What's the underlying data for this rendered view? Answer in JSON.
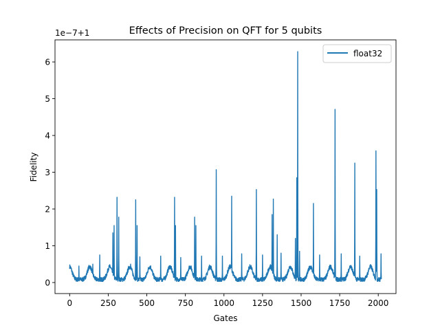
{
  "chart_data": {
    "type": "line",
    "title": "Effects of Precision on QFT for 5 qubits",
    "xlabel": "Gates",
    "ylabel": "Fidelity",
    "offset_text": "1e−7+1",
    "xlim": [
      -95,
      2115
    ],
    "ylim": [
      -0.3,
      6.6
    ],
    "xticks": [
      0,
      250,
      500,
      750,
      1000,
      1250,
      1500,
      1750,
      2000
    ],
    "yticks": [
      0,
      1,
      2,
      3,
      4,
      5,
      6
    ],
    "grid": false,
    "legend": {
      "position": "top-right",
      "entries": [
        "float32"
      ]
    },
    "series": [
      {
        "name": "float32",
        "color": "#1f77b4",
        "x_range": [
          0,
          2020
        ],
        "peaks": [
          {
            "x": 60,
            "y": 0.45
          },
          {
            "x": 150,
            "y": 0.5
          },
          {
            "x": 195,
            "y": 0.75
          },
          {
            "x": 280,
            "y": 1.35
          },
          {
            "x": 288,
            "y": 1.55
          },
          {
            "x": 307,
            "y": 2.32
          },
          {
            "x": 318,
            "y": 1.78
          },
          {
            "x": 395,
            "y": 0.5
          },
          {
            "x": 428,
            "y": 2.25
          },
          {
            "x": 437,
            "y": 1.55
          },
          {
            "x": 455,
            "y": 0.7
          },
          {
            "x": 590,
            "y": 0.72
          },
          {
            "x": 680,
            "y": 2.32
          },
          {
            "x": 686,
            "y": 1.55
          },
          {
            "x": 720,
            "y": 0.68
          },
          {
            "x": 810,
            "y": 1.78
          },
          {
            "x": 818,
            "y": 1.55
          },
          {
            "x": 855,
            "y": 0.72
          },
          {
            "x": 950,
            "y": 3.07
          },
          {
            "x": 990,
            "y": 0.72
          },
          {
            "x": 1050,
            "y": 2.35
          },
          {
            "x": 1115,
            "y": 0.78
          },
          {
            "x": 1210,
            "y": 2.53
          },
          {
            "x": 1250,
            "y": 0.75
          },
          {
            "x": 1312,
            "y": 1.85
          },
          {
            "x": 1320,
            "y": 2.27
          },
          {
            "x": 1345,
            "y": 1.3
          },
          {
            "x": 1370,
            "y": 0.8
          },
          {
            "x": 1463,
            "y": 1.2
          },
          {
            "x": 1472,
            "y": 2.85
          },
          {
            "x": 1478,
            "y": 6.28
          },
          {
            "x": 1490,
            "y": 0.85
          },
          {
            "x": 1580,
            "y": 2.15
          },
          {
            "x": 1620,
            "y": 0.75
          },
          {
            "x": 1720,
            "y": 4.71
          },
          {
            "x": 1760,
            "y": 0.78
          },
          {
            "x": 1848,
            "y": 3.25
          },
          {
            "x": 1880,
            "y": 0.72
          },
          {
            "x": 1985,
            "y": 3.58
          },
          {
            "x": 1990,
            "y": 2.53
          },
          {
            "x": 2018,
            "y": 0.78
          }
        ]
      }
    ]
  }
}
